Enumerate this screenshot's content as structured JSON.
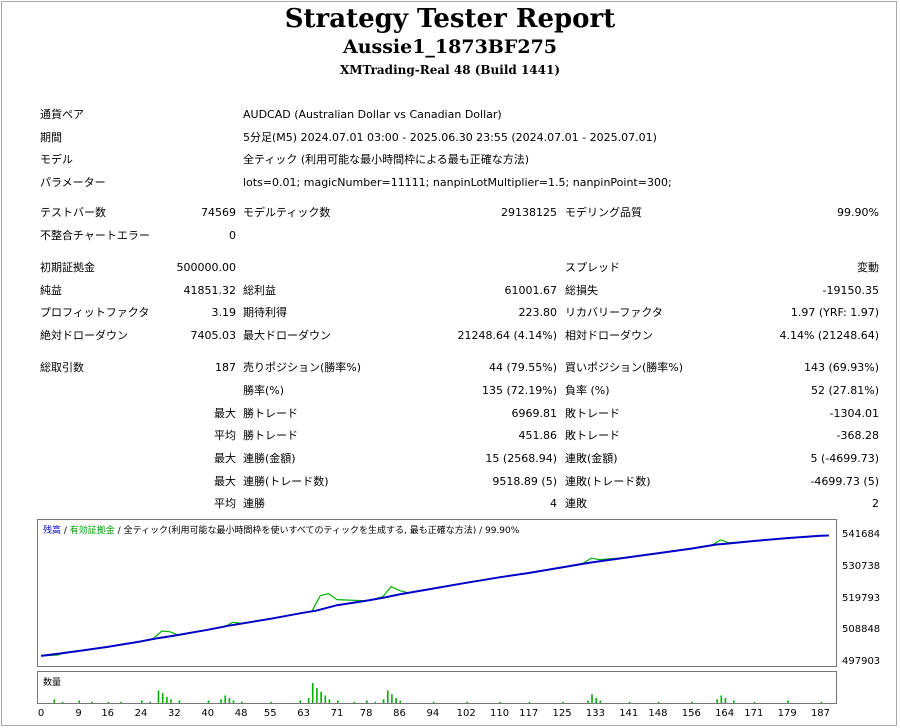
{
  "header": {
    "title": "Strategy Tester Report",
    "expert": "Aussie1_1873BF275",
    "server": "XMTrading-Real 48 (Build 1441)"
  },
  "info": {
    "symbol_label": "通貨ペア",
    "symbol": "AUDCAD (Australian Dollar vs Canadian Dollar)",
    "period_label": "期間",
    "period": "5分足(M5) 2024.07.01 03:00 - 2025.06.30 23:55 (2024.07.01 - 2025.07.01)",
    "model_label": "モデル",
    "model": "全ティック (利用可能な最小時間枠による最も正確な方法)",
    "params_label": "パラメーター",
    "params": "lots=0.01; magicNumber=11111; nanpinLotMultiplier=1.5; nanpinPoint=300;"
  },
  "stats": {
    "bars_label": "テストバー数",
    "bars": "74569",
    "ticks_label": "モデルティック数",
    "ticks": "29138125",
    "quality_label": "モデリング品質",
    "quality": "99.90%",
    "errors_label": "不整合チャートエラー",
    "errors": "0",
    "deposit_label": "初期証拠金",
    "deposit": "500000.00",
    "spread_label": "スプレッド",
    "spread": "変動",
    "net_label": "純益",
    "net": "41851.32",
    "gross_profit_label": "総利益",
    "gross_profit": "61001.67",
    "gross_loss_label": "総損失",
    "gross_loss": "-19150.35",
    "pf_label": "プロフィットファクタ",
    "pf": "3.19",
    "expected_label": "期待利得",
    "expected": "223.80",
    "recovery_label": "リカバリーファクタ",
    "recovery": "1.97 (YRF: 1.97)",
    "abs_dd_label": "絶対ドローダウン",
    "abs_dd": "7405.03",
    "max_dd_label": "最大ドローダウン",
    "max_dd": "21248.64 (4.14%)",
    "rel_dd_label": "相対ドローダウン",
    "rel_dd": "4.14% (21248.64)",
    "trades_label": "総取引数",
    "trades": "187",
    "short_label": "売りポジション(勝率%)",
    "short": "44 (79.55%)",
    "long_label": "買いポジション(勝率%)",
    "long": "143 (69.93%)",
    "win_label": "勝率(%)",
    "win": "135 (72.19%)",
    "loss_label": "負率 (%)",
    "loss": "52 (27.81%)",
    "max_word": "最大",
    "avg_word": "平均",
    "win_trade_label": "勝トレード",
    "loss_trade_label": "敗トレード",
    "largest_win": "6969.81",
    "largest_loss": "-1304.01",
    "avg_win": "451.86",
    "avg_loss": "-368.28",
    "cons_wins_amt_label": "連勝(金額)",
    "cons_wins_amt": "15 (2568.94)",
    "cons_loss_amt_label": "連敗(金額)",
    "cons_loss_amt": "5 (-4699.73)",
    "cons_wins_cnt_label": "連勝(トレード数)",
    "cons_wins_cnt": "9518.89 (5)",
    "cons_loss_cnt_label": "連敗(トレード数)",
    "cons_loss_cnt": "-4699.73 (5)",
    "avg_cons_win_label": "連勝",
    "avg_cons_win": "4",
    "avg_cons_loss_label": "連敗",
    "avg_cons_loss": "2"
  },
  "chart_legend": {
    "balance": "残高",
    "sep1": " / ",
    "equity": "有効証拠金",
    "sep2": " / ",
    "desc": "全ティック(利用可能な最小時間枠を使いすべてのティックを生成する, 最も正確な方法) / 99.90%",
    "volume": "数量"
  },
  "colors": {
    "balance": "#0000c8",
    "equity": "#00b000",
    "volume": "#00b000"
  },
  "chart_data": {
    "type": "line",
    "ylim": [
      497903,
      541684
    ],
    "y_ticks": [
      "541684",
      "530738",
      "519793",
      "508848",
      "497903"
    ],
    "x_ticks": [
      "0",
      "9",
      "16",
      "24",
      "32",
      "40",
      "48",
      "55",
      "63",
      "71",
      "78",
      "86",
      "94",
      "102",
      "110",
      "117",
      "125",
      "133",
      "141",
      "148",
      "156",
      "164",
      "171",
      "179",
      "187"
    ],
    "x_range": [
      0,
      190
    ],
    "series": [
      {
        "name": "残高",
        "points": [
          [
            0,
            500000
          ],
          [
            5,
            500900
          ],
          [
            9,
            501700
          ],
          [
            16,
            503100
          ],
          [
            24,
            505000
          ],
          [
            28,
            506100
          ],
          [
            32,
            507000
          ],
          [
            40,
            509000
          ],
          [
            45,
            510400
          ],
          [
            48,
            511100
          ],
          [
            55,
            512800
          ],
          [
            63,
            514900
          ],
          [
            66,
            515600
          ],
          [
            71,
            517500
          ],
          [
            78,
            519000
          ],
          [
            82,
            520000
          ],
          [
            86,
            521200
          ],
          [
            94,
            523200
          ],
          [
            102,
            525200
          ],
          [
            110,
            527100
          ],
          [
            117,
            528600
          ],
          [
            125,
            530500
          ],
          [
            131,
            532000
          ],
          [
            133,
            532400
          ],
          [
            141,
            534000
          ],
          [
            148,
            535400
          ],
          [
            156,
            537000
          ],
          [
            162,
            538400
          ],
          [
            164,
            538600
          ],
          [
            171,
            539600
          ],
          [
            179,
            540600
          ],
          [
            187,
            541400
          ],
          [
            189,
            541500
          ]
        ]
      },
      {
        "name": "有効証拠金",
        "points": [
          [
            0,
            500000
          ],
          [
            4,
            500300
          ],
          [
            6,
            501200
          ],
          [
            9,
            501700
          ],
          [
            16,
            503100
          ],
          [
            24,
            505000
          ],
          [
            27,
            506000
          ],
          [
            29,
            508600
          ],
          [
            31,
            508300
          ],
          [
            33,
            507100
          ],
          [
            40,
            509000
          ],
          [
            44,
            510000
          ],
          [
            46,
            511600
          ],
          [
            48,
            511200
          ],
          [
            55,
            512800
          ],
          [
            63,
            514900
          ],
          [
            65,
            515400
          ],
          [
            67,
            520800
          ],
          [
            69,
            521400
          ],
          [
            71,
            519400
          ],
          [
            78,
            519000
          ],
          [
            80,
            519600
          ],
          [
            82,
            520400
          ],
          [
            84,
            523900
          ],
          [
            86,
            522500
          ],
          [
            88,
            521800
          ],
          [
            94,
            523200
          ],
          [
            102,
            525200
          ],
          [
            110,
            527100
          ],
          [
            117,
            528600
          ],
          [
            125,
            530500
          ],
          [
            130,
            531900
          ],
          [
            132,
            533700
          ],
          [
            134,
            533200
          ],
          [
            141,
            534000
          ],
          [
            148,
            535400
          ],
          [
            156,
            537000
          ],
          [
            161,
            538200
          ],
          [
            163,
            540000
          ],
          [
            165,
            539000
          ],
          [
            171,
            539600
          ],
          [
            179,
            540600
          ],
          [
            187,
            541400
          ],
          [
            189,
            541500
          ]
        ]
      }
    ]
  },
  "volume_data": {
    "bars": [
      [
        3,
        3
      ],
      [
        5,
        1
      ],
      [
        9,
        2
      ],
      [
        12,
        1
      ],
      [
        16,
        1
      ],
      [
        19,
        1
      ],
      [
        24,
        2
      ],
      [
        26,
        1
      ],
      [
        28,
        10
      ],
      [
        29,
        8
      ],
      [
        30,
        5
      ],
      [
        31,
        3
      ],
      [
        33,
        2
      ],
      [
        40,
        2
      ],
      [
        43,
        3
      ],
      [
        44,
        6
      ],
      [
        45,
        4
      ],
      [
        46,
        2
      ],
      [
        48,
        1
      ],
      [
        55,
        1
      ],
      [
        62,
        2
      ],
      [
        64,
        4
      ],
      [
        65,
        16
      ],
      [
        66,
        12
      ],
      [
        67,
        9
      ],
      [
        68,
        6
      ],
      [
        69,
        3
      ],
      [
        71,
        2
      ],
      [
        75,
        1
      ],
      [
        78,
        2
      ],
      [
        80,
        1
      ],
      [
        82,
        3
      ],
      [
        83,
        10
      ],
      [
        84,
        7
      ],
      [
        85,
        4
      ],
      [
        86,
        2
      ],
      [
        94,
        1
      ],
      [
        102,
        1
      ],
      [
        110,
        1
      ],
      [
        117,
        1
      ],
      [
        125,
        1
      ],
      [
        131,
        2
      ],
      [
        132,
        7
      ],
      [
        133,
        4
      ],
      [
        134,
        2
      ],
      [
        141,
        1
      ],
      [
        148,
        1
      ],
      [
        156,
        1
      ],
      [
        162,
        3
      ],
      [
        163,
        6
      ],
      [
        164,
        4
      ],
      [
        166,
        2
      ],
      [
        171,
        1
      ],
      [
        179,
        2
      ],
      [
        187,
        1
      ]
    ],
    "max": 16
  }
}
